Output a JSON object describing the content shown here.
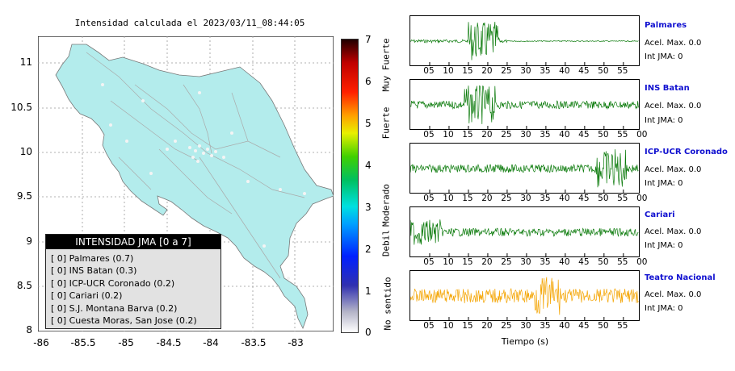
{
  "chart_data": [
    {
      "type": "map",
      "title": "Intensidad calculada el 2023/03/11_08:44:05",
      "xlim": [
        -86,
        -82.5
      ],
      "ylim": [
        8,
        11.3
      ],
      "xticks": [
        "-86",
        "-85.5",
        "-85",
        "-84.5",
        "-84",
        "-83.5",
        "-83"
      ],
      "yticks": [
        "8",
        "8.5",
        "9",
        "9.5",
        "10",
        "10.5",
        "11"
      ],
      "colorbar": {
        "min": 0,
        "max": 7,
        "ticks": [
          "0",
          "1",
          "2",
          "3",
          "4",
          "5",
          "6",
          "7"
        ],
        "labels": [
          "No sentido",
          "Debil",
          "Moderado",
          "Fuerte",
          "Muy Fuerte"
        ]
      },
      "legend": {
        "title": "INTENSIDAD JMA [0 a 7]",
        "entries": [
          {
            "level": "[ 0]",
            "station": "Palmares (0.7)"
          },
          {
            "level": "[ 0]",
            "station": "INS Batan (0.3)"
          },
          {
            "level": "[ 0]",
            "station": "ICP-UCR Coronado (0.2)"
          },
          {
            "level": "[ 0]",
            "station": "Cariari (0.2)"
          },
          {
            "level": "[ 0]",
            "station": "S.J. Montana Barva (0.2)"
          },
          {
            "level": "[ 0]",
            "station": "Cuesta Moras, San Jose (0.2)"
          }
        ]
      }
    },
    {
      "type": "line",
      "xlabel": "Tiempo (s)",
      "series": [
        {
          "name": "Palmares",
          "color": "#0a7a0a",
          "accel": "Acel. Max. 0.0",
          "jma": "Int JMA: 0",
          "ticks": [
            "05",
            "10",
            "15",
            "20",
            "25",
            "30",
            "35",
            "40",
            "45",
            "50",
            "55"
          ],
          "burst_s": [
            17,
            20
          ]
        },
        {
          "name": "INS Batan",
          "color": "#0a7a0a",
          "accel": "Acel. Max. 0.0",
          "jma": "Int JMA: 0",
          "ticks": [
            "05",
            "10",
            "15",
            "20",
            "25",
            "30",
            "35",
            "40",
            "45",
            "50",
            "55",
            "00"
          ],
          "burst_s": [
            16,
            19
          ]
        },
        {
          "name": "ICP-UCR Coronado",
          "color": "#0a7a0a",
          "accel": "Acel. Max. 0.0",
          "jma": "Int JMA: 0",
          "ticks": [
            "05",
            "10",
            "15",
            "20",
            "25",
            "30",
            "35",
            "40",
            "45",
            "50",
            "55",
            "00"
          ],
          "burst_s": [
            50,
            53
          ]
        },
        {
          "name": "Cariari",
          "color": "#0a7a0a",
          "accel": "Acel. Max. 0.0",
          "jma": "Int JMA: 0",
          "ticks": [
            "05",
            "10",
            "15",
            "20",
            "25",
            "30",
            "35",
            "40",
            "45",
            "50",
            "55",
            "00"
          ],
          "burst_s": [
            1,
            5
          ]
        },
        {
          "name": "Teatro Nacional",
          "color": "#f4a400",
          "accel": "Acel. Max. 0.0",
          "jma": "Int JMA: 0",
          "ticks": [
            "05",
            "10",
            "15",
            "20",
            "25",
            "30",
            "35",
            "40",
            "45",
            "50",
            "55"
          ],
          "burst_s": [
            34,
            36
          ]
        }
      ]
    }
  ]
}
